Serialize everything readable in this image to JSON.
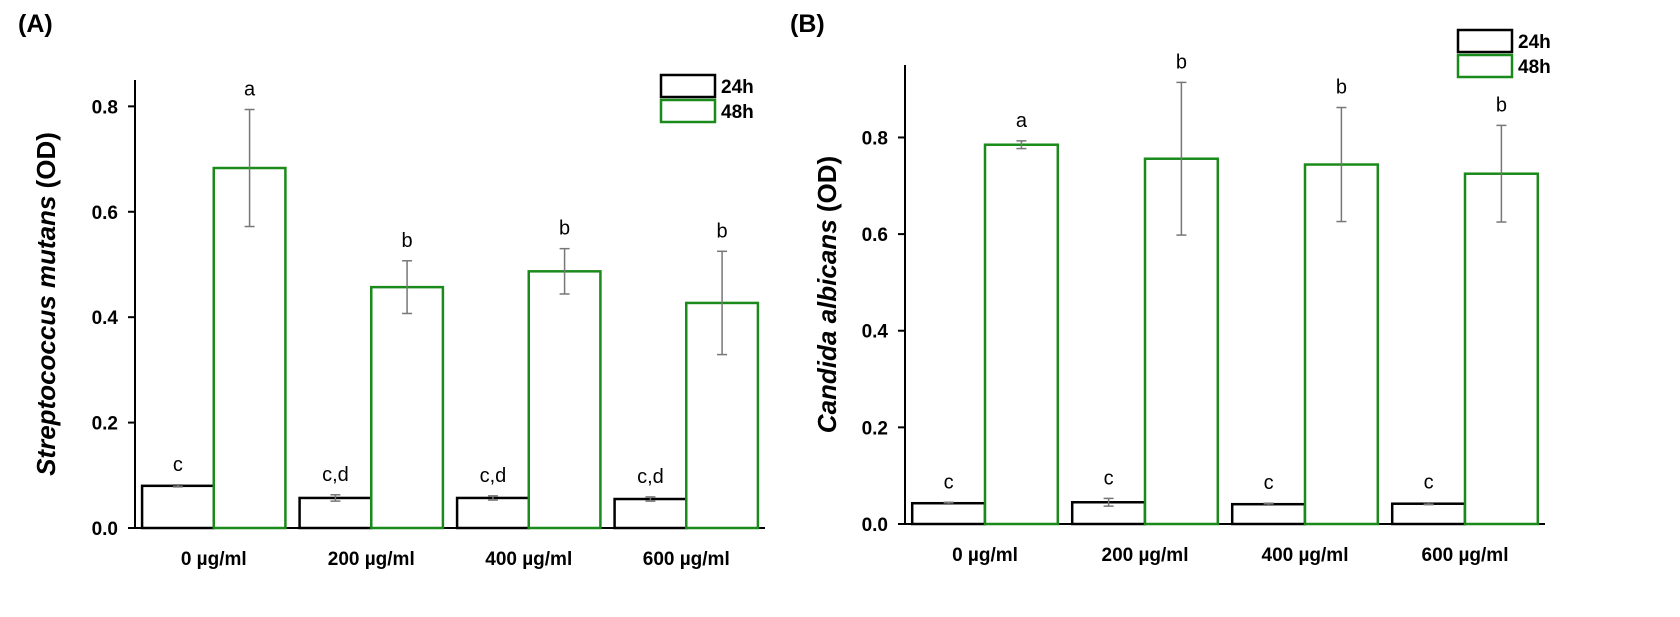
{
  "chart_data": [
    {
      "type": "bar",
      "panel_label": "(A)",
      "ylabel_italic": "Streptococcus mutans",
      "ylabel_suffix": " (OD)",
      "xlabel": "",
      "ylim": [
        0,
        0.85
      ],
      "yticks": [
        "0.0",
        "0.2",
        "0.4",
        "0.6",
        "0.8"
      ],
      "categories": [
        "0 µg/ml",
        "200 µg/ml",
        "400 µg/ml",
        "600 µg/ml"
      ],
      "series": [
        {
          "name": "24h",
          "color": "#000000",
          "values": [
            0.08,
            0.057,
            0.057,
            0.055
          ],
          "errors": [
            0.002,
            0.006,
            0.004,
            0.004
          ],
          "letters": [
            "c",
            "c,d",
            "c,d",
            "c,d"
          ]
        },
        {
          "name": "48h",
          "color": "#1a8a1a",
          "values": [
            0.683,
            0.457,
            0.487,
            0.427
          ],
          "errors": [
            0.111,
            0.05,
            0.043,
            0.098
          ],
          "letters": [
            "a",
            "b",
            "b",
            "b"
          ]
        }
      ],
      "legend": [
        "24h",
        "48h"
      ]
    },
    {
      "type": "bar",
      "panel_label": "(B)",
      "ylabel_italic": "Candida  albicans",
      "ylabel_suffix": " (OD)",
      "xlabel": "",
      "ylim": [
        0,
        0.95
      ],
      "yticks": [
        "0.0",
        "0.2",
        "0.4",
        "0.6",
        "0.8"
      ],
      "categories": [
        "0 µg/ml",
        "200 µg/ml",
        "400 µg/ml",
        "600 µg/ml"
      ],
      "series": [
        {
          "name": "24h",
          "color": "#000000",
          "values": [
            0.043,
            0.045,
            0.041,
            0.042
          ],
          "errors": [
            0.002,
            0.008,
            0.002,
            0.002
          ],
          "letters": [
            "c",
            "c",
            "c",
            "c"
          ]
        },
        {
          "name": "48h",
          "color": "#1a8a1a",
          "values": [
            0.785,
            0.756,
            0.744,
            0.725
          ],
          "errors": [
            0.008,
            0.158,
            0.118,
            0.1
          ],
          "letters": [
            "a",
            "b",
            "b",
            "b"
          ]
        }
      ],
      "legend": [
        "24h",
        "48h"
      ]
    }
  ]
}
